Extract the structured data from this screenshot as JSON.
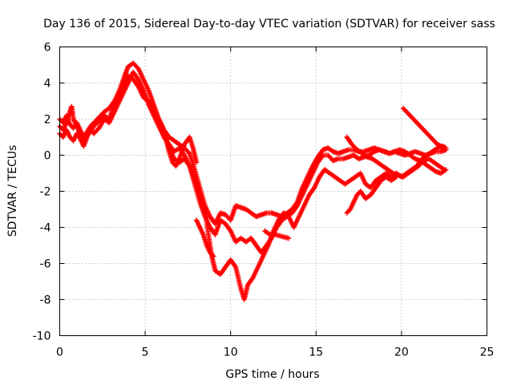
{
  "chart_data": {
    "type": "scatter",
    "title": "Day 136 of 2015, Sidereal Day-to-day VTEC variation (SDTVAR) for receiver sass",
    "xlabel": "GPS time / hours",
    "ylabel": "SDTVAR / TECUs",
    "xlim": [
      0,
      25
    ],
    "ylim": [
      -10,
      6
    ],
    "xticks": [
      "0",
      "5",
      "10",
      "15",
      "20",
      "25"
    ],
    "yticks": [
      "-10",
      "-8",
      "-6",
      "-4",
      "-2",
      "0",
      "2",
      "4",
      "6"
    ],
    "grid": true,
    "marker": "plus",
    "color": "#ff0000",
    "series": [
      {
        "points": [
          [
            0,
            1.2
          ],
          [
            0.2,
            1.0
          ],
          [
            0.4,
            1.4
          ],
          [
            0.6,
            1.0
          ],
          [
            0.8,
            0.8
          ],
          [
            1.0,
            1.2
          ],
          [
            1.2,
            0.9
          ],
          [
            1.4,
            0.5
          ],
          [
            1.6,
            1.0
          ],
          [
            1.8,
            1.4
          ],
          [
            2.0,
            1.2
          ],
          [
            2.3,
            1.5
          ],
          [
            2.6,
            2.0
          ],
          [
            2.9,
            1.8
          ],
          [
            3.2,
            2.4
          ],
          [
            3.5,
            3.0
          ],
          [
            3.8,
            3.6
          ],
          [
            4.0,
            4.0
          ],
          [
            4.3,
            4.6
          ],
          [
            4.6,
            4.2
          ],
          [
            4.9,
            3.6
          ],
          [
            5.2,
            2.8
          ],
          [
            5.5,
            2.2
          ],
          [
            5.8,
            1.6
          ],
          [
            6.1,
            1.0
          ],
          [
            6.4,
            0.6
          ],
          [
            6.7,
            0.2
          ],
          [
            7.0,
            0.4
          ],
          [
            7.3,
            0.0
          ],
          [
            7.6,
            -0.6
          ],
          [
            7.9,
            -1.6
          ],
          [
            8.2,
            -2.6
          ],
          [
            8.5,
            -3.4
          ],
          [
            8.8,
            -4.0
          ],
          [
            9.1,
            -4.4
          ],
          [
            9.4,
            -3.6
          ],
          [
            9.7,
            -3.8
          ],
          [
            10.0,
            -4.2
          ],
          [
            10.3,
            -4.8
          ],
          [
            10.6,
            -4.6
          ],
          [
            10.9,
            -4.8
          ],
          [
            11.2,
            -4.6
          ],
          [
            11.5,
            -5.0
          ],
          [
            11.8,
            -5.4
          ],
          [
            12.1,
            -5.0
          ],
          [
            12.4,
            -4.6
          ],
          [
            12.7,
            -4.0
          ],
          [
            13.0,
            -3.6
          ],
          [
            13.3,
            -3.4
          ],
          [
            13.6,
            -3.2
          ],
          [
            13.9,
            -2.8
          ],
          [
            14.2,
            -2.2
          ],
          [
            14.5,
            -1.6
          ],
          [
            14.8,
            -1.0
          ],
          [
            15.1,
            -0.4
          ],
          [
            15.4,
            0.0
          ],
          [
            15.7,
            0.0
          ],
          [
            16.0,
            -0.3
          ],
          [
            16.3,
            -0.2
          ],
          [
            16.6,
            -0.2
          ],
          [
            16.9,
            -0.1
          ],
          [
            17.2,
            0.0
          ],
          [
            17.5,
            -0.2
          ],
          [
            17.8,
            -0.1
          ],
          [
            18.1,
            0.0
          ],
          [
            18.4,
            0.2
          ],
          [
            18.7,
            0.3
          ],
          [
            19.0,
            0.2
          ],
          [
            19.3,
            0.1
          ],
          [
            19.6,
            0.2
          ],
          [
            19.9,
            0.1
          ],
          [
            20.2,
            0.0
          ],
          [
            20.5,
            0.1
          ],
          [
            20.8,
            0.2
          ],
          [
            21.1,
            0.1
          ],
          [
            21.4,
            0.0
          ],
          [
            21.7,
            0.1
          ],
          [
            22.0,
            0.2
          ],
          [
            22.3,
            0.2
          ],
          [
            22.6,
            0.3
          ]
        ]
      },
      {
        "points": [
          [
            0,
            2.0
          ],
          [
            0.2,
            1.8
          ],
          [
            0.4,
            2.2
          ],
          [
            0.6,
            1.7
          ],
          [
            0.8,
            1.5
          ],
          [
            1.0,
            1.8
          ],
          [
            1.2,
            1.4
          ],
          [
            1.4,
            1.0
          ],
          [
            1.6,
            1.3
          ],
          [
            1.8,
            1.6
          ],
          [
            2.0,
            1.8
          ],
          [
            2.3,
            2.1
          ],
          [
            2.6,
            2.4
          ],
          [
            2.9,
            2.6
          ],
          [
            3.2,
            3.0
          ],
          [
            3.5,
            3.6
          ],
          [
            3.8,
            4.4
          ],
          [
            4.0,
            4.9
          ],
          [
            4.3,
            5.1
          ],
          [
            4.6,
            4.8
          ],
          [
            4.9,
            4.2
          ],
          [
            5.2,
            3.6
          ],
          [
            5.5,
            2.8
          ],
          [
            5.8,
            2.0
          ],
          [
            6.1,
            1.4
          ],
          [
            6.4,
            1.0
          ],
          [
            6.7,
            0.8
          ],
          [
            7.0,
            0.6
          ],
          [
            7.3,
            0.4
          ],
          [
            7.6,
            0.1
          ],
          [
            7.9,
            -0.8
          ],
          [
            8.2,
            -1.8
          ],
          [
            8.5,
            -2.8
          ],
          [
            8.8,
            -3.4
          ],
          [
            9.1,
            -3.8
          ],
          [
            9.4,
            -3.2
          ],
          [
            9.7,
            -3.3
          ],
          [
            10.0,
            -3.6
          ],
          [
            10.3,
            -2.8
          ],
          [
            10.6,
            -2.9
          ],
          [
            10.9,
            -3.0
          ],
          [
            11.2,
            -3.2
          ],
          [
            11.5,
            -3.4
          ],
          [
            11.8,
            -3.3
          ],
          [
            12.1,
            -3.2
          ],
          [
            12.4,
            -3.2
          ],
          [
            12.7,
            -3.3
          ],
          [
            13.0,
            -3.4
          ],
          [
            13.3,
            -3.2
          ],
          [
            13.6,
            -3.0
          ],
          [
            13.9,
            -2.6
          ],
          [
            14.2,
            -1.8
          ],
          [
            14.5,
            -1.2
          ],
          [
            14.8,
            -0.6
          ],
          [
            15.1,
            -0.1
          ],
          [
            15.4,
            0.3
          ],
          [
            15.7,
            0.4
          ],
          [
            16.0,
            0.2
          ],
          [
            16.3,
            0.1
          ],
          [
            16.6,
            0.2
          ],
          [
            16.9,
            0.3
          ],
          [
            17.2,
            0.3
          ],
          [
            17.5,
            0.2
          ],
          [
            17.8,
            0.2
          ],
          [
            18.1,
            0.3
          ],
          [
            18.4,
            0.4
          ],
          [
            18.7,
            0.3
          ],
          [
            19.0,
            0.2
          ],
          [
            19.3,
            0.1
          ],
          [
            19.6,
            0.2
          ],
          [
            19.9,
            0.3
          ],
          [
            20.2,
            0.2
          ],
          [
            20.5,
            0.0
          ],
          [
            20.8,
            -0.2
          ],
          [
            21.1,
            -0.3
          ],
          [
            21.4,
            -0.5
          ],
          [
            21.7,
            -0.7
          ],
          [
            22.0,
            -0.9
          ],
          [
            22.3,
            -1.0
          ],
          [
            22.6,
            -0.8
          ]
        ]
      },
      {
        "points": [
          [
            0,
            1.6
          ],
          [
            0.2,
            1.4
          ],
          [
            0.4,
            1.8
          ],
          [
            0.6,
            2.4
          ],
          [
            0.7,
            2.7
          ],
          [
            0.8,
            2.0
          ],
          [
            1.0,
            1.6
          ],
          [
            1.2,
            1.2
          ],
          [
            1.4,
            0.8
          ],
          [
            1.6,
            1.1
          ],
          [
            1.8,
            1.3
          ],
          [
            2.0,
            1.6
          ],
          [
            2.3,
            1.9
          ],
          [
            2.6,
            2.2
          ],
          [
            2.9,
            2.0
          ],
          [
            3.1,
            2.6
          ],
          [
            3.4,
            3.2
          ],
          [
            3.7,
            3.8
          ],
          [
            4.0,
            4.4
          ],
          [
            4.3,
            4.2
          ],
          [
            4.6,
            3.8
          ],
          [
            4.9,
            3.2
          ],
          [
            5.2,
            3.0
          ],
          [
            5.5,
            2.4
          ],
          [
            5.8,
            1.8
          ],
          [
            6.1,
            1.2
          ],
          [
            6.4,
            0.4
          ],
          [
            6.7,
            -0.2
          ],
          [
            7.0,
            -0.4
          ],
          [
            7.3,
            -0.2
          ],
          [
            7.6,
            -0.6
          ],
          [
            7.9,
            -1.4
          ],
          [
            8.2,
            -2.2
          ],
          [
            8.5,
            -3.0
          ],
          [
            8.7,
            -4.4
          ],
          [
            8.9,
            -5.6
          ],
          [
            9.1,
            -6.4
          ],
          [
            9.4,
            -6.6
          ],
          [
            9.7,
            -6.2
          ],
          [
            10.0,
            -5.8
          ],
          [
            10.3,
            -6.2
          ],
          [
            10.6,
            -7.4
          ],
          [
            10.8,
            -8.0
          ],
          [
            11.0,
            -7.2
          ],
          [
            11.3,
            -6.8
          ],
          [
            11.6,
            -6.2
          ],
          [
            11.9,
            -5.6
          ],
          [
            12.2,
            -5.0
          ],
          [
            12.5,
            -4.2
          ],
          [
            12.8,
            -3.6
          ],
          [
            13.1,
            -3.2
          ],
          [
            13.4,
            -3.4
          ],
          [
            13.7,
            -4.0
          ],
          [
            14.0,
            -3.4
          ],
          [
            14.3,
            -2.8
          ],
          [
            14.6,
            -2.2
          ],
          [
            14.9,
            -1.8
          ],
          [
            15.2,
            -1.2
          ],
          [
            15.5,
            -0.8
          ],
          [
            15.8,
            -1.0
          ],
          [
            16.1,
            -1.2
          ],
          [
            16.4,
            -1.4
          ],
          [
            16.7,
            -1.6
          ],
          [
            17.0,
            -1.4
          ],
          [
            17.3,
            -1.2
          ],
          [
            17.6,
            -1.0
          ],
          [
            17.9,
            -1.6
          ],
          [
            18.2,
            -1.8
          ],
          [
            18.5,
            -1.4
          ],
          [
            18.8,
            -1.2
          ],
          [
            19.1,
            -1.0
          ],
          [
            19.4,
            -1.2
          ],
          [
            19.7,
            -1.0
          ],
          [
            20.0,
            -1.2
          ],
          [
            20.3,
            -1.0
          ],
          [
            20.6,
            -0.8
          ],
          [
            20.9,
            -0.6
          ],
          [
            21.2,
            -0.2
          ],
          [
            21.5,
            0.0
          ],
          [
            21.8,
            0.2
          ],
          [
            22.1,
            0.4
          ],
          [
            22.4,
            0.5
          ],
          [
            22.6,
            0.4
          ]
        ]
      },
      {
        "points": [
          [
            20.1,
            2.6
          ],
          [
            20.3,
            2.4
          ],
          [
            20.5,
            2.2
          ],
          [
            20.7,
            2.0
          ],
          [
            20.9,
            1.8
          ],
          [
            21.1,
            1.6
          ],
          [
            21.3,
            1.4
          ],
          [
            21.5,
            1.2
          ],
          [
            21.7,
            1.0
          ],
          [
            21.9,
            0.8
          ],
          [
            22.1,
            0.6
          ],
          [
            22.3,
            0.5
          ],
          [
            22.5,
            0.4
          ]
        ]
      },
      {
        "points": [
          [
            16.8,
            1.0
          ],
          [
            17.1,
            0.6
          ],
          [
            17.4,
            0.3
          ],
          [
            17.7,
            0.1
          ],
          [
            18.0,
            -0.1
          ],
          [
            18.3,
            -0.2
          ],
          [
            18.6,
            -0.4
          ],
          [
            18.9,
            -0.6
          ],
          [
            19.2,
            -0.8
          ],
          [
            19.5,
            -1.0
          ],
          [
            19.8,
            -1.1
          ],
          [
            20.1,
            -1.2
          ],
          [
            20.4,
            -1.0
          ],
          [
            20.7,
            -0.8
          ],
          [
            21.0,
            -0.6
          ],
          [
            21.3,
            -0.3
          ],
          [
            21.6,
            -0.2
          ],
          [
            21.9,
            -0.4
          ],
          [
            22.2,
            -0.6
          ],
          [
            22.5,
            -0.8
          ]
        ]
      },
      {
        "points": [
          [
            16.8,
            -3.2
          ],
          [
            17.0,
            -3.0
          ],
          [
            17.2,
            -2.6
          ],
          [
            17.4,
            -2.2
          ],
          [
            17.6,
            -2.0
          ],
          [
            17.9,
            -2.4
          ],
          [
            18.2,
            -2.2
          ],
          [
            18.5,
            -1.8
          ],
          [
            18.8,
            -1.4
          ],
          [
            19.1,
            -1.2
          ],
          [
            19.4,
            -1.4
          ],
          [
            19.7,
            -1.2
          ]
        ]
      },
      {
        "points": [
          [
            8.0,
            -3.6
          ],
          [
            8.2,
            -4.0
          ],
          [
            8.4,
            -4.4
          ],
          [
            8.6,
            -5.0
          ],
          [
            8.8,
            -5.4
          ],
          [
            9.0,
            -5.6
          ]
        ]
      },
      {
        "points": [
          [
            12.0,
            -4.2
          ],
          [
            12.3,
            -4.4
          ],
          [
            12.6,
            -4.4
          ],
          [
            13.4,
            -4.6
          ]
        ]
      },
      {
        "points": [
          [
            5.8,
            2.0
          ],
          [
            6.0,
            1.6
          ],
          [
            6.2,
            1.0
          ],
          [
            6.4,
            0.2
          ],
          [
            6.6,
            -0.4
          ],
          [
            6.8,
            -0.6
          ],
          [
            7.0,
            -0.2
          ],
          [
            7.3,
            0.6
          ],
          [
            7.6,
            1.0
          ],
          [
            7.8,
            0.4
          ],
          [
            8.0,
            -0.4
          ]
        ]
      }
    ]
  }
}
